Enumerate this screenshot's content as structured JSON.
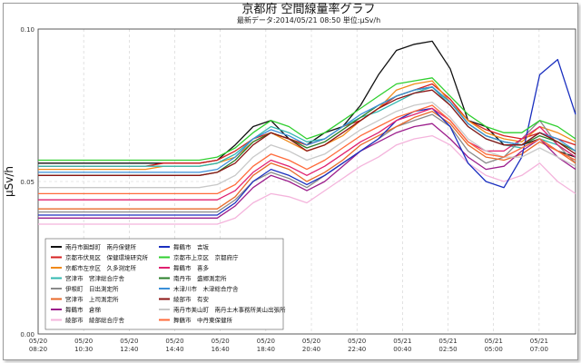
{
  "window": {
    "title": "京都府 空間線量率グラフ",
    "subtitle": "最新データ:2014/05/21 08:50  単位:μSv/h"
  },
  "chart_data": {
    "type": "line",
    "title": "京都府 空間線量率グラフ",
    "subtitle": "最新データ:2014/05/21 08:50  単位:μSv/h",
    "ylabel": "μSv/h",
    "xlabel": "",
    "ylim": [
      0,
      0.1
    ],
    "yticks": [
      "0.00",
      "0.05",
      "0.10"
    ],
    "xticks": [
      {
        "date": "05/20",
        "time": "08:20"
      },
      {
        "date": "05/20",
        "time": "10:30"
      },
      {
        "date": "05/20",
        "time": "12:40"
      },
      {
        "date": "05/20",
        "time": "14:40"
      },
      {
        "date": "05/20",
        "time": "16:40"
      },
      {
        "date": "05/20",
        "time": "18:40"
      },
      {
        "date": "05/20",
        "time": "20:40"
      },
      {
        "date": "05/20",
        "time": "22:40"
      },
      {
        "date": "05/21",
        "time": "00:40"
      },
      {
        "date": "05/21",
        "time": "02:50"
      },
      {
        "date": "05/21",
        "time": "05:00"
      },
      {
        "date": "05/21",
        "time": "07:00"
      }
    ],
    "grid": true,
    "legend_position": "bottom-left-inside",
    "series": [
      {
        "name": "南丹市園部町　南丹保健所",
        "color": "#111111",
        "values": [
          0.056,
          0.056,
          0.056,
          0.056,
          0.056,
          0.056,
          0.056,
          0.056,
          0.056,
          0.056,
          0.057,
          0.062,
          0.068,
          0.07,
          0.064,
          0.062,
          0.066,
          0.068,
          0.075,
          0.085,
          0.093,
          0.095,
          0.096,
          0.087,
          0.07,
          0.068,
          0.062,
          0.062,
          0.064,
          0.06,
          0.058
        ]
      },
      {
        "name": "京都市伏見区　保健環境研究所",
        "color": "#d62020",
        "values": [
          0.055,
          0.055,
          0.055,
          0.055,
          0.055,
          0.055,
          0.055,
          0.056,
          0.056,
          0.056,
          0.057,
          0.06,
          0.064,
          0.066,
          0.064,
          0.062,
          0.064,
          0.068,
          0.07,
          0.074,
          0.078,
          0.08,
          0.082,
          0.077,
          0.07,
          0.067,
          0.065,
          0.064,
          0.066,
          0.064,
          0.062
        ]
      },
      {
        "name": "京都市左京区　久多測定所",
        "color": "#f08a1a",
        "values": [
          0.054,
          0.054,
          0.054,
          0.054,
          0.054,
          0.054,
          0.054,
          0.055,
          0.055,
          0.055,
          0.056,
          0.058,
          0.063,
          0.066,
          0.063,
          0.06,
          0.062,
          0.065,
          0.07,
          0.074,
          0.08,
          0.082,
          0.083,
          0.076,
          0.07,
          0.066,
          0.064,
          0.063,
          0.068,
          0.066,
          0.063
        ]
      },
      {
        "name": "宮津市　宮津総合庁舎",
        "color": "#32b8b0",
        "values": [
          0.055,
          0.055,
          0.055,
          0.055,
          0.055,
          0.055,
          0.055,
          0.055,
          0.055,
          0.055,
          0.056,
          0.059,
          0.064,
          0.068,
          0.066,
          0.063,
          0.064,
          0.068,
          0.071,
          0.073,
          0.076,
          0.079,
          0.081,
          0.075,
          0.068,
          0.064,
          0.062,
          0.061,
          0.064,
          0.062,
          0.058
        ]
      },
      {
        "name": "伊根町　日出測定所",
        "color": "#8a8a8a",
        "values": [
          0.04,
          0.04,
          0.04,
          0.04,
          0.04,
          0.04,
          0.04,
          0.04,
          0.04,
          0.04,
          0.04,
          0.044,
          0.05,
          0.053,
          0.051,
          0.048,
          0.052,
          0.056,
          0.06,
          0.064,
          0.068,
          0.07,
          0.072,
          0.068,
          0.06,
          0.056,
          0.058,
          0.064,
          0.07,
          0.062,
          0.056
        ]
      },
      {
        "name": "宮津市　上司測定所",
        "color": "#e86a2a",
        "values": [
          0.041,
          0.041,
          0.041,
          0.041,
          0.041,
          0.041,
          0.041,
          0.041,
          0.041,
          0.041,
          0.041,
          0.045,
          0.052,
          0.056,
          0.054,
          0.05,
          0.053,
          0.057,
          0.062,
          0.065,
          0.068,
          0.071,
          0.073,
          0.069,
          0.062,
          0.058,
          0.057,
          0.059,
          0.063,
          0.06,
          0.056
        ]
      },
      {
        "name": "舞鶴市　倉梯",
        "color": "#9c1e8c",
        "values": [
          0.038,
          0.038,
          0.038,
          0.038,
          0.038,
          0.038,
          0.038,
          0.038,
          0.038,
          0.038,
          0.038,
          0.042,
          0.048,
          0.052,
          0.05,
          0.047,
          0.05,
          0.055,
          0.06,
          0.063,
          0.066,
          0.068,
          0.069,
          0.064,
          0.058,
          0.054,
          0.055,
          0.06,
          0.064,
          0.058,
          0.054
        ]
      },
      {
        "name": "綾部市　綾部総合庁舎",
        "color": "#f4b4dc",
        "values": [
          0.036,
          0.036,
          0.036,
          0.036,
          0.036,
          0.036,
          0.036,
          0.036,
          0.036,
          0.036,
          0.036,
          0.038,
          0.043,
          0.046,
          0.045,
          0.043,
          0.047,
          0.051,
          0.055,
          0.058,
          0.062,
          0.064,
          0.065,
          0.062,
          0.056,
          0.052,
          0.05,
          0.052,
          0.056,
          0.05,
          0.046
        ]
      },
      {
        "name": "舞鶴市　吉坂",
        "color": "#1a2fbf",
        "values": [
          0.039,
          0.039,
          0.039,
          0.039,
          0.039,
          0.039,
          0.039,
          0.039,
          0.039,
          0.039,
          0.039,
          0.043,
          0.05,
          0.054,
          0.052,
          0.049,
          0.052,
          0.056,
          0.06,
          0.064,
          0.07,
          0.073,
          0.074,
          0.068,
          0.056,
          0.05,
          0.048,
          0.058,
          0.085,
          0.09,
          0.072
        ]
      },
      {
        "name": "京都市上京区　京都府庁",
        "color": "#2fcf2f",
        "values": [
          0.057,
          0.057,
          0.057,
          0.057,
          0.057,
          0.057,
          0.057,
          0.057,
          0.057,
          0.057,
          0.058,
          0.061,
          0.066,
          0.07,
          0.068,
          0.064,
          0.066,
          0.07,
          0.074,
          0.078,
          0.082,
          0.083,
          0.084,
          0.078,
          0.072,
          0.068,
          0.066,
          0.066,
          0.07,
          0.068,
          0.064
        ]
      },
      {
        "name": "舞鶴市　喜多",
        "color": "#e02070",
        "values": [
          0.044,
          0.044,
          0.044,
          0.044,
          0.044,
          0.044,
          0.044,
          0.044,
          0.044,
          0.044,
          0.044,
          0.047,
          0.053,
          0.057,
          0.055,
          0.052,
          0.055,
          0.059,
          0.063,
          0.066,
          0.07,
          0.072,
          0.074,
          0.07,
          0.063,
          0.06,
          0.06,
          0.064,
          0.068,
          0.062,
          0.058
        ]
      },
      {
        "name": "南丹市　盛郷測定所",
        "color": "#2a7f2a",
        "values": [
          0.052,
          0.052,
          0.052,
          0.052,
          0.052,
          0.052,
          0.052,
          0.052,
          0.052,
          0.052,
          0.053,
          0.057,
          0.063,
          0.066,
          0.064,
          0.061,
          0.063,
          0.067,
          0.071,
          0.075,
          0.078,
          0.08,
          0.081,
          0.076,
          0.069,
          0.065,
          0.063,
          0.062,
          0.065,
          0.063,
          0.06
        ]
      },
      {
        "name": "木津川市　木津総合庁舎",
        "color": "#3a8fd8",
        "values": [
          0.053,
          0.053,
          0.053,
          0.053,
          0.053,
          0.053,
          0.053,
          0.053,
          0.053,
          0.053,
          0.054,
          0.058,
          0.064,
          0.067,
          0.065,
          0.062,
          0.064,
          0.068,
          0.072,
          0.075,
          0.078,
          0.08,
          0.081,
          0.076,
          0.069,
          0.065,
          0.063,
          0.062,
          0.066,
          0.064,
          0.06
        ]
      },
      {
        "name": "綾部市　有安",
        "color": "#8b1414",
        "values": [
          0.052,
          0.052,
          0.052,
          0.052,
          0.052,
          0.052,
          0.052,
          0.052,
          0.052,
          0.052,
          0.053,
          0.056,
          0.062,
          0.066,
          0.064,
          0.06,
          0.062,
          0.066,
          0.07,
          0.074,
          0.077,
          0.079,
          0.08,
          0.075,
          0.068,
          0.064,
          0.062,
          0.062,
          0.066,
          0.063,
          0.059
        ]
      },
      {
        "name": "南丹市美山町　南丹土木事務所美山出張所",
        "color": "#c8c8c8",
        "values": [
          0.048,
          0.048,
          0.048,
          0.048,
          0.048,
          0.048,
          0.048,
          0.048,
          0.048,
          0.048,
          0.049,
          0.052,
          0.058,
          0.062,
          0.06,
          0.057,
          0.059,
          0.063,
          0.067,
          0.07,
          0.073,
          0.075,
          0.076,
          0.071,
          0.064,
          0.06,
          0.058,
          0.058,
          0.061,
          0.058,
          0.055
        ]
      },
      {
        "name": "舞鶴市　中丹東保健所",
        "color": "#ff6a3a",
        "values": [
          0.046,
          0.046,
          0.046,
          0.046,
          0.046,
          0.046,
          0.046,
          0.046,
          0.046,
          0.046,
          0.046,
          0.049,
          0.055,
          0.059,
          0.057,
          0.054,
          0.057,
          0.061,
          0.065,
          0.068,
          0.071,
          0.073,
          0.075,
          0.07,
          0.063,
          0.059,
          0.058,
          0.061,
          0.064,
          0.06,
          0.057
        ]
      }
    ]
  }
}
